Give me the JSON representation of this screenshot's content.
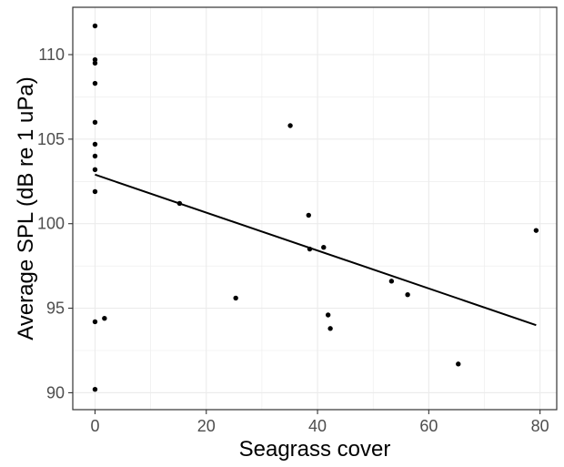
{
  "chart_data": {
    "type": "scatter",
    "title": "",
    "xlabel": "Seagrass cover",
    "ylabel": "Average SPL (dB re 1 uPa)",
    "xlim": [
      -4,
      83
    ],
    "ylim": [
      89,
      112.8
    ],
    "x_ticks": [
      0,
      20,
      40,
      60,
      80
    ],
    "y_ticks": [
      90,
      95,
      100,
      105,
      110
    ],
    "grid": true,
    "legend": "none",
    "point_color": "#000000",
    "line_color": "#000000",
    "panel_border_color": "#333333",
    "grid_color": "#ebebeb",
    "points": [
      {
        "x": 0,
        "y": 111.7
      },
      {
        "x": 0,
        "y": 109.7
      },
      {
        "x": 0,
        "y": 109.5
      },
      {
        "x": 0,
        "y": 108.3
      },
      {
        "x": 0,
        "y": 106.0
      },
      {
        "x": 0,
        "y": 104.7
      },
      {
        "x": 0,
        "y": 104.0
      },
      {
        "x": 0,
        "y": 103.2
      },
      {
        "x": 0,
        "y": 101.9
      },
      {
        "x": 0,
        "y": 94.2
      },
      {
        "x": 0,
        "y": 90.2
      },
      {
        "x": 1.7,
        "y": 94.4
      },
      {
        "x": 15.2,
        "y": 101.2
      },
      {
        "x": 25.3,
        "y": 95.6
      },
      {
        "x": 35.1,
        "y": 105.8
      },
      {
        "x": 38.4,
        "y": 100.5
      },
      {
        "x": 38.6,
        "y": 98.5
      },
      {
        "x": 41.1,
        "y": 98.6
      },
      {
        "x": 41.9,
        "y": 94.6
      },
      {
        "x": 42.3,
        "y": 93.8
      },
      {
        "x": 53.3,
        "y": 96.6
      },
      {
        "x": 56.2,
        "y": 95.8
      },
      {
        "x": 65.3,
        "y": 91.7
      },
      {
        "x": 79.3,
        "y": 99.6
      }
    ],
    "trend_line": {
      "x": [
        0,
        79.3
      ],
      "y": [
        102.9,
        94.0
      ]
    }
  }
}
